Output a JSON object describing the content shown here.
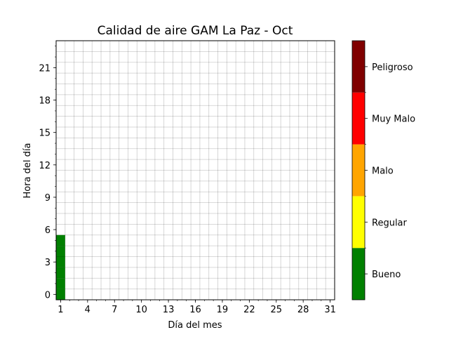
{
  "chart_data": {
    "type": "heatmap",
    "title": "Calidad de aire GAM La Paz - Oct",
    "xlabel": "Día del mes",
    "ylabel": "Hora del día",
    "x_range": [
      0.5,
      31.5
    ],
    "y_range": [
      -0.5,
      23.5
    ],
    "x_ticks": [
      1,
      4,
      7,
      10,
      13,
      16,
      19,
      22,
      25,
      28,
      31
    ],
    "y_ticks": [
      0,
      3,
      6,
      9,
      12,
      15,
      18,
      21
    ],
    "grid": true,
    "colorbar": {
      "categories": [
        "Bueno",
        "Regular",
        "Malo",
        "Muy Malo",
        "Peligroso"
      ],
      "colors": [
        "#008000",
        "#ffff00",
        "#ffa500",
        "#ff0000",
        "#800000"
      ]
    },
    "cells": [
      {
        "day": 1,
        "hour": 0,
        "category": "Bueno"
      },
      {
        "day": 1,
        "hour": 1,
        "category": "Bueno"
      },
      {
        "day": 1,
        "hour": 2,
        "category": "Bueno"
      },
      {
        "day": 1,
        "hour": 3,
        "category": "Bueno"
      },
      {
        "day": 1,
        "hour": 4,
        "category": "Bueno"
      },
      {
        "day": 1,
        "hour": 5,
        "category": "Bueno"
      }
    ]
  }
}
